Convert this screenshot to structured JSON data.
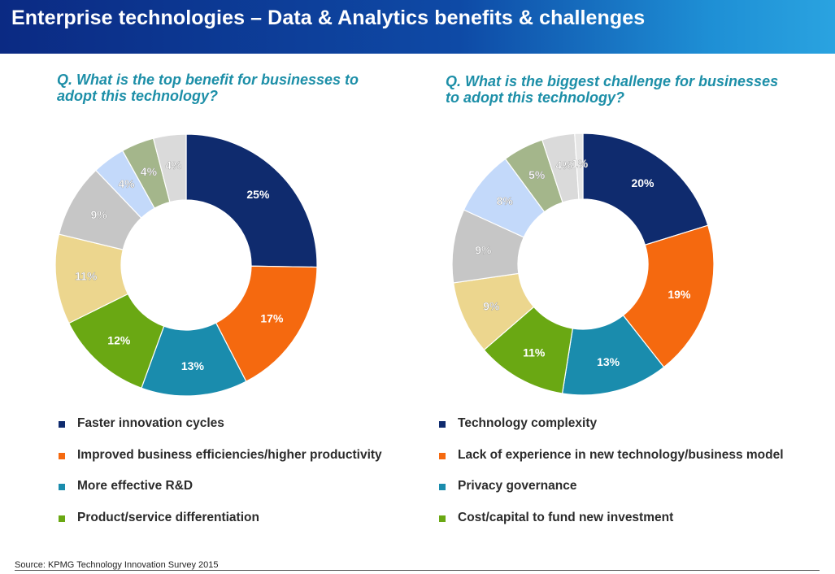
{
  "header": {
    "title": "Enterprise technologies – Data & Analytics benefits & challenges"
  },
  "source": "Source: KPMG Technology Innovation Survey 2015",
  "colors": {
    "navy": "#0f2b6e",
    "orange": "#f5690f",
    "teal": "#1a8cad",
    "green": "#6aa813",
    "yellow": "#ecd68e",
    "gray": "#c6c6c6",
    "lightblue": "#c3d9fa",
    "olive": "#a4b68b",
    "lightgray": "#dadada",
    "question": "#1d8fa8"
  },
  "chart_data": [
    {
      "type": "pie",
      "variant": "donut",
      "title": "Q. What is the top benefit for businesses to adopt this technology?",
      "categories": [
        "Faster innovation cycles",
        "Improved business efficiencies/higher productivity",
        "More effective R&D",
        "Product/service differentiation",
        "",
        "",
        "",
        "",
        ""
      ],
      "values": [
        25,
        17,
        13,
        12,
        11,
        9,
        4,
        4,
        4
      ],
      "labels": [
        "25%",
        "17%",
        "13%",
        "12%",
        "11%",
        "9%",
        "4%",
        "4%",
        "4%"
      ],
      "colors": [
        "#0f2b6e",
        "#f5690f",
        "#1a8cad",
        "#6aa813",
        "#ecd68e",
        "#c6c6c6",
        "#c3d9fa",
        "#a4b68b",
        "#dadada"
      ],
      "legend": [
        "Faster innovation cycles",
        "Improved business efficiencies/higher productivity",
        "More effective R&D",
        "Product/service differentiation"
      ]
    },
    {
      "type": "pie",
      "variant": "donut",
      "title": "Q. What is the biggest challenge for businesses to adopt this technology?",
      "categories": [
        "Technology complexity",
        "Lack of experience in new technology/business model",
        "Privacy governance",
        "Cost/capital to fund new investment",
        "",
        "",
        "",
        "",
        "",
        ""
      ],
      "values": [
        20,
        19,
        13,
        11,
        9,
        9,
        8,
        5,
        4,
        1
      ],
      "labels": [
        "20%",
        "19%",
        "13%",
        "11%",
        "9%",
        "9%",
        "8%",
        "5%",
        "4%",
        "1%"
      ],
      "colors": [
        "#0f2b6e",
        "#f5690f",
        "#1a8cad",
        "#6aa813",
        "#ecd68e",
        "#c6c6c6",
        "#c3d9fa",
        "#a4b68b",
        "#dadada",
        "#e6e6e6"
      ],
      "legend": [
        "Technology complexity",
        "Lack of experience in new technology/business model",
        "Privacy governance",
        "Cost/capital to fund new investment"
      ]
    }
  ]
}
